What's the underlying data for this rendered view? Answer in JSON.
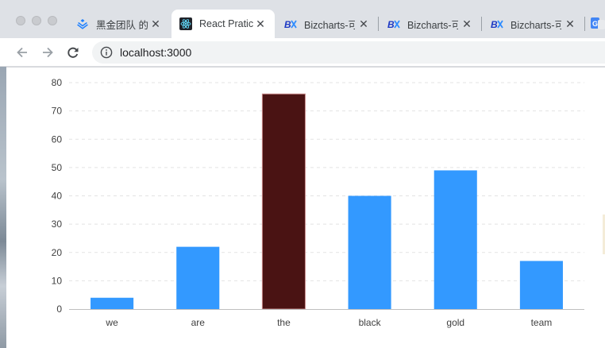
{
  "browser": {
    "tabs": [
      {
        "title": "黑金团队 的",
        "favicon": "juejin-icon"
      },
      {
        "title": "React Pratic",
        "favicon": "react-icon",
        "active": true
      },
      {
        "title": "Bizcharts-可",
        "favicon": "bizcharts-icon"
      },
      {
        "title": "Bizcharts-可",
        "favicon": "bizcharts-icon"
      },
      {
        "title": "Bizcharts-可",
        "favicon": "bizcharts-icon"
      }
    ],
    "close_glyph": "✕",
    "url": "localhost:3000"
  },
  "colors": {
    "bar": "#3399ff",
    "bar_highlight": "#4a1313",
    "grid": "#e3e3e3",
    "axis": "#bfbfbf",
    "tick_text": "#404040"
  },
  "chart_data": {
    "type": "bar",
    "categories": [
      "we",
      "are",
      "the",
      "black",
      "gold",
      "team"
    ],
    "values": [
      4,
      22,
      76,
      40,
      49,
      17
    ],
    "highlighted_category": "the",
    "ylim": [
      0,
      80
    ],
    "yticks": [
      "0",
      "10",
      "20",
      "30",
      "40",
      "50",
      "60",
      "70",
      "80"
    ],
    "grid": true,
    "title": "",
    "xlabel": "",
    "ylabel": ""
  }
}
